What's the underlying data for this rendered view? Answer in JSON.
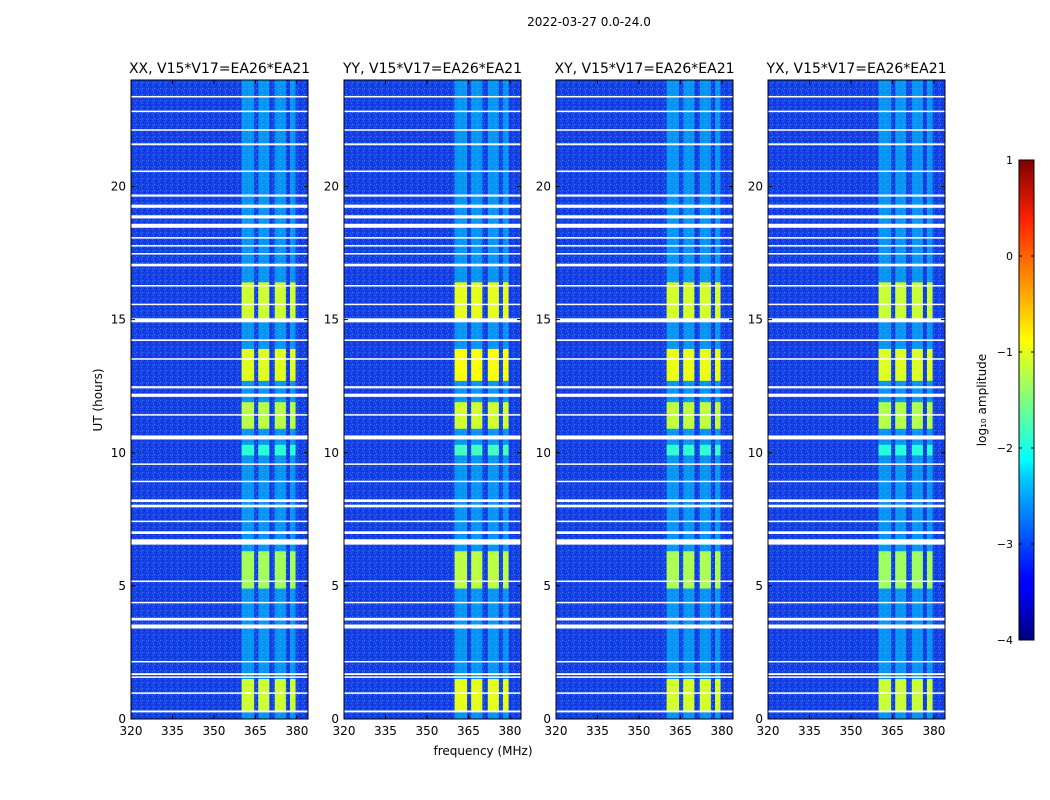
{
  "figure": {
    "suptitle": "2022-03-27 0.0-24.0",
    "ylabel": "UT (hours)",
    "xlabel": "frequency (MHz)"
  },
  "chart_data": {
    "type": "heatmap",
    "x_range_mhz": [
      320,
      384
    ],
    "y_range_hours": [
      0,
      24
    ],
    "x_ticks": [
      "320",
      "335",
      "350",
      "365",
      "380"
    ],
    "x_tick_values": [
      320,
      335,
      350,
      365,
      380
    ],
    "y_ticks": [
      "0",
      "5",
      "10",
      "15",
      "20"
    ],
    "y_tick_values": [
      0,
      5,
      10,
      15,
      20
    ],
    "panels": [
      {
        "title": "XX, V15*V17=EA26*EA21",
        "rfi_level": 0.85
      },
      {
        "title": "YY, V15*V17=EA26*EA21",
        "rfi_level": 1.0
      },
      {
        "title": "XY, V15*V17=EA26*EA21",
        "rfi_level": 0.9
      },
      {
        "title": "YX, V15*V17=EA26*EA21",
        "rfi_level": 0.82
      }
    ],
    "background_log10_amplitude": -3.0,
    "rfi_channels_mhz": [
      [
        360,
        364.5
      ],
      [
        366,
        370
      ],
      [
        372,
        376
      ],
      [
        377.5,
        379.5
      ]
    ],
    "rfi_bursts_hours": [
      {
        "range": [
          0.3,
          1.5
        ],
        "log10_amplitude": -1.0
      },
      {
        "range": [
          4.9,
          6.3
        ],
        "log10_amplitude": -1.2
      },
      {
        "range": [
          9.9,
          10.3
        ],
        "log10_amplitude": -1.8
      },
      {
        "range": [
          10.9,
          11.9
        ],
        "log10_amplitude": -1.1
      },
      {
        "range": [
          12.7,
          13.9
        ],
        "log10_amplitude": -0.9
      },
      {
        "range": [
          15.0,
          16.4
        ],
        "log10_amplitude": -1.0
      }
    ],
    "flagged_hours": [
      [
        0.25,
        0.32
      ],
      [
        0.95,
        1.0
      ],
      [
        1.55,
        1.6
      ],
      [
        1.65,
        1.72
      ],
      [
        2.15,
        2.18
      ],
      [
        3.4,
        3.55
      ],
      [
        3.7,
        3.8
      ],
      [
        4.35,
        4.4
      ],
      [
        5.15,
        5.2
      ],
      [
        6.55,
        6.75
      ],
      [
        6.95,
        7.05
      ],
      [
        7.4,
        7.45
      ],
      [
        7.95,
        8.05
      ],
      [
        8.15,
        8.25
      ],
      [
        8.9,
        8.95
      ],
      [
        9.55,
        9.6
      ],
      [
        10.5,
        10.65
      ],
      [
        11.4,
        11.45
      ],
      [
        12.1,
        12.22
      ],
      [
        12.42,
        12.5
      ],
      [
        13.5,
        13.55
      ],
      [
        14.2,
        14.26
      ],
      [
        14.9,
        15.05
      ],
      [
        15.55,
        15.6
      ],
      [
        16.25,
        16.3
      ],
      [
        17.0,
        17.1
      ],
      [
        17.45,
        17.5
      ],
      [
        17.75,
        17.8
      ],
      [
        18.05,
        18.1
      ],
      [
        18.45,
        18.6
      ],
      [
        18.8,
        18.92
      ],
      [
        19.2,
        19.32
      ],
      [
        19.62,
        19.7
      ],
      [
        20.55,
        20.6
      ],
      [
        21.55,
        21.62
      ],
      [
        22.1,
        22.15
      ],
      [
        22.8,
        22.85
      ],
      [
        23.35,
        23.4
      ]
    ],
    "colorbar": {
      "label": "log₁₀ amplitude",
      "range": [
        -4,
        1
      ],
      "ticks": [
        "1",
        "0",
        "−1",
        "−2",
        "−3",
        "−4"
      ],
      "tick_values": [
        1,
        0,
        -1,
        -2,
        -3,
        -4
      ],
      "colormap": "jet"
    }
  }
}
